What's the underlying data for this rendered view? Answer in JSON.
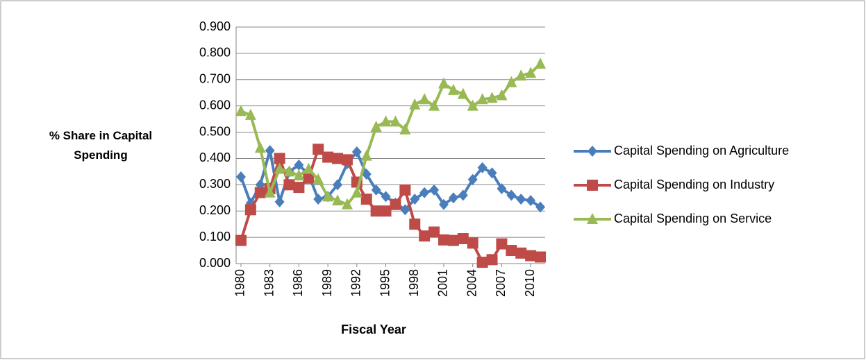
{
  "chart_data": {
    "type": "line",
    "x_label": "Fiscal Year",
    "y_label": "% Share in Capital Spending",
    "x": [
      1980,
      1981,
      1982,
      1983,
      1984,
      1985,
      1986,
      1987,
      1988,
      1989,
      1990,
      1991,
      1992,
      1993,
      1994,
      1995,
      1996,
      1997,
      1998,
      1999,
      2000,
      2001,
      2002,
      2003,
      2004,
      2005,
      2006,
      2007,
      2008,
      2009,
      2010,
      2011
    ],
    "xlim": [
      1979.5,
      2011.5
    ],
    "xticks": [
      1980,
      1983,
      1986,
      1989,
      1992,
      1995,
      1998,
      2001,
      2004,
      2007,
      2010
    ],
    "ylim": [
      0,
      0.9
    ],
    "yticks": [
      {
        "value": 0,
        "label": "0.000"
      },
      {
        "value": 0.1,
        "label": "0.100"
      },
      {
        "value": 0.2,
        "label": "0.200"
      },
      {
        "value": 0.3,
        "label": "0.300"
      },
      {
        "value": 0.4,
        "label": "0.400"
      },
      {
        "value": 0.5,
        "label": "0.500"
      },
      {
        "value": 0.6,
        "label": "0.600"
      },
      {
        "value": 0.7,
        "label": "0.700"
      },
      {
        "value": 0.8,
        "label": "0.800"
      },
      {
        "value": 0.9,
        "label": "0.900"
      }
    ],
    "grid": true,
    "legend": "right",
    "series": [
      {
        "name": "Capital Spending on Agriculture",
        "color": "#4a7ebb",
        "marker": "diamond",
        "values": [
          0.33,
          0.23,
          0.3,
          0.43,
          0.235,
          0.35,
          0.375,
          0.34,
          0.245,
          0.255,
          0.3,
          0.38,
          0.425,
          0.34,
          0.28,
          0.255,
          0.23,
          0.205,
          0.245,
          0.27,
          0.28,
          0.225,
          0.25,
          0.26,
          0.32,
          0.365,
          0.345,
          0.285,
          0.26,
          0.245,
          0.24,
          0.215
        ]
      },
      {
        "name": "Capital Spending on Industry",
        "color": "#be4b48",
        "marker": "square",
        "values": [
          0.088,
          0.205,
          0.27,
          0.285,
          0.4,
          0.3,
          0.29,
          0.325,
          0.435,
          0.405,
          0.4,
          0.395,
          0.31,
          0.245,
          0.2,
          0.2,
          0.225,
          0.28,
          0.15,
          0.105,
          0.12,
          0.09,
          0.088,
          0.095,
          0.078,
          0.005,
          0.015,
          0.075,
          0.05,
          0.04,
          0.03,
          0.025
        ]
      },
      {
        "name": "Capital Spending on Service",
        "color": "#98b954",
        "marker": "triangle",
        "values": [
          0.58,
          0.565,
          0.44,
          0.27,
          0.36,
          0.35,
          0.335,
          0.36,
          0.32,
          0.255,
          0.24,
          0.225,
          0.27,
          0.41,
          0.52,
          0.54,
          0.54,
          0.51,
          0.605,
          0.625,
          0.6,
          0.685,
          0.66,
          0.645,
          0.6,
          0.625,
          0.63,
          0.64,
          0.69,
          0.715,
          0.725,
          0.76
        ]
      }
    ]
  }
}
